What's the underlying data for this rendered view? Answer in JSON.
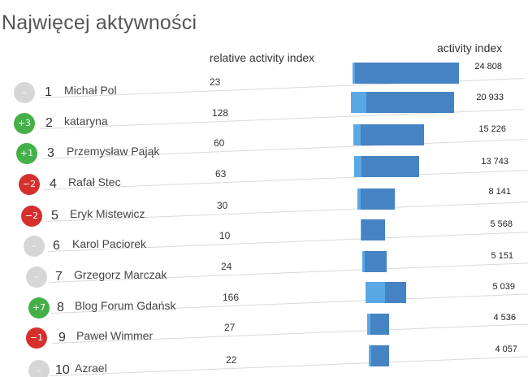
{
  "title": "Najwięcej aktywności",
  "headers": {
    "relative": "relative activity index",
    "activity": "activity index"
  },
  "colors": {
    "bar": "#4583c2",
    "bar_light": "#59a8e6",
    "up": "#44b047",
    "down": "#d5302d",
    "same": "#d6d6d6"
  },
  "max_activity": 24808,
  "rows": [
    {
      "rank": "1",
      "name": "Michał Pol",
      "change": "–",
      "trend": "same",
      "relative": "23",
      "activity": "24 808",
      "activity_value": 24808
    },
    {
      "rank": "2",
      "name": "kataryna",
      "change": "+3",
      "trend": "up",
      "relative": "128",
      "activity": "20 933",
      "activity_value": 20933
    },
    {
      "rank": "3",
      "name": "Przemysław Pająk",
      "change": "+1",
      "trend": "up",
      "relative": "60",
      "activity": "15 226",
      "activity_value": 15226
    },
    {
      "rank": "4",
      "name": "Rafał Stec",
      "change": "−2",
      "trend": "down",
      "relative": "63",
      "activity": "13 743",
      "activity_value": 13743
    },
    {
      "rank": "5",
      "name": "Eryk Mistewicz",
      "change": "−2",
      "trend": "down",
      "relative": "30",
      "activity": "8 141",
      "activity_value": 8141
    },
    {
      "rank": "6",
      "name": "Karol Paciorek",
      "change": "–",
      "trend": "same",
      "relative": "10",
      "activity": "5 568",
      "activity_value": 5568
    },
    {
      "rank": "7",
      "name": "Grzegorz Marczak",
      "change": "–",
      "trend": "same",
      "relative": "24",
      "activity": "5 151",
      "activity_value": 5151
    },
    {
      "rank": "8",
      "name": "Blog Forum Gdańsk",
      "change": "+7",
      "trend": "up",
      "relative": "166",
      "activity": "5 039",
      "activity_value": 5039
    },
    {
      "rank": "9",
      "name": "Paweł Wimmer",
      "change": "−1",
      "trend": "down",
      "relative": "27",
      "activity": "4 536",
      "activity_value": 4536
    },
    {
      "rank": "10",
      "name": "Azrael",
      "change": "–",
      "trend": "same",
      "relative": "22",
      "activity": "4 057",
      "activity_value": 4057
    }
  ]
}
